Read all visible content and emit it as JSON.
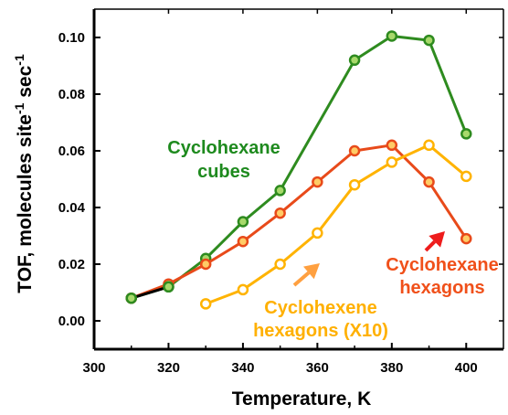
{
  "chart_data": {
    "type": "line",
    "xlabel": "Temperature, K",
    "ylabel": {
      "main": "TOF, molecules site",
      "sup1": "-1",
      "mid": " sec",
      "sup2": "-1"
    },
    "xlim": [
      300,
      410
    ],
    "ylim": [
      -0.01,
      0.11
    ],
    "x_ticks": [
      300,
      320,
      340,
      360,
      380,
      400
    ],
    "y_ticks": [
      0.0,
      0.02,
      0.04,
      0.06,
      0.08,
      0.1
    ],
    "y_tick_labels": [
      "0.00",
      "0.02",
      "0.04",
      "0.06",
      "0.08",
      "0.10"
    ],
    "grid": false,
    "series": [
      {
        "name": "Cyclohexane cubes",
        "color": "#2e8b1f",
        "marker_fill": "#a8d96b",
        "x": [
          310,
          320,
          330,
          340,
          350,
          370,
          380,
          390,
          400
        ],
        "y": [
          0.008,
          0.012,
          0.022,
          0.035,
          0.046,
          0.092,
          0.1005,
          0.099,
          0.066
        ]
      },
      {
        "name": "Cyclohexane hexagons",
        "color": "#e84a1a",
        "marker_fill": "#ffcc66",
        "x": [
          310,
          320,
          330,
          340,
          350,
          360,
          370,
          380,
          390,
          400
        ],
        "y": [
          0.008,
          0.013,
          0.02,
          0.028,
          0.038,
          0.049,
          0.06,
          0.062,
          0.049,
          0.029
        ]
      },
      {
        "name": "Cyclohexene hexagons (X10)",
        "color": "#ffb300",
        "marker_fill": "#ffffff",
        "x": [
          330,
          340,
          350,
          360,
          370,
          380,
          390,
          400
        ],
        "y": [
          0.006,
          0.011,
          0.02,
          0.031,
          0.048,
          0.056,
          0.062,
          0.051
        ]
      }
    ],
    "extra_marks": {
      "black_start_x": [
        310,
        320
      ],
      "black_start_y": [
        0.008,
        0.012
      ]
    },
    "annotations": [
      {
        "lines": [
          "Cyclohexane",
          "cubes"
        ],
        "color": "#1e8a1e"
      },
      {
        "lines": [
          "Cyclohexane",
          "hexagons"
        ],
        "color": "#f0501a"
      },
      {
        "lines": [
          "Cyclohexene",
          "hexagons (X10)"
        ],
        "color": "#ffb000"
      }
    ]
  }
}
